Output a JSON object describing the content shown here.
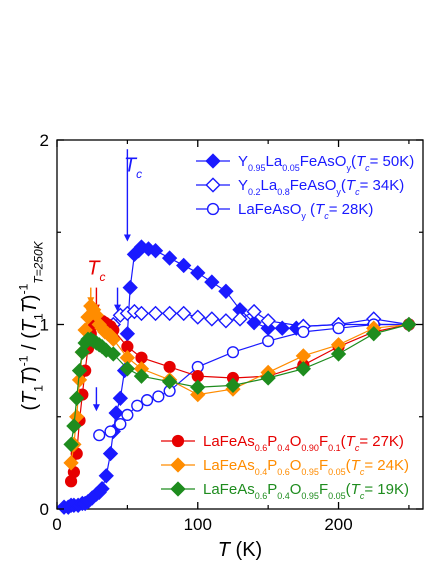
{
  "chart_data": {
    "type": "scatter",
    "title": "",
    "xlabel": "T (K)",
    "ylabel": "(T1T)^-1 / (T1T)^-1 T=250K",
    "xlim": [
      0,
      260
    ],
    "ylim": [
      0,
      2
    ],
    "xticks": [
      0,
      100,
      200
    ],
    "yticks": [
      0,
      1,
      2
    ],
    "grid": false,
    "legend_upper": "top-right",
    "legend_lower": "bottom-right",
    "annotations": [
      {
        "text": "Tc",
        "color": "#1a1aff",
        "x": 54,
        "y": 1.83
      },
      {
        "text": "Tc",
        "color": "#e60000",
        "x": 28,
        "y": 1.27
      }
    ],
    "arrows": [
      {
        "color": "#1a1aff",
        "x": 50,
        "y_from": 1.95,
        "y_to": 1.45
      },
      {
        "color": "#e60000",
        "x": 28,
        "y_from": 1.2,
        "y_to": 1.07
      },
      {
        "color": "#ff8c00",
        "x": 24,
        "y_from": 1.2,
        "y_to": 1.11
      },
      {
        "color": "#1a1aff",
        "x": 43,
        "y_from": 1.2,
        "y_to": 1.07
      },
      {
        "color": "#1a1aff",
        "x": 28,
        "y_from": 0.66,
        "y_to": 0.53
      }
    ],
    "series": [
      {
        "name": "Y0.95La0.05FeAsOy(Tc= 50K)",
        "legend_group": "upper",
        "color": "#1a1aff",
        "marker": "diamond",
        "filled": true,
        "legend_parts": [
          {
            "t": "Y"
          },
          {
            "t": "0.95",
            "sub": true
          },
          {
            "t": "La"
          },
          {
            "t": "0.05",
            "sub": true
          },
          {
            "t": "FeAsO"
          },
          {
            "t": "y",
            "sub": true
          },
          {
            "t": "("
          },
          {
            "t": "T",
            "it": true
          },
          {
            "t": "c",
            "sub": true,
            "it": true
          },
          {
            "t": "= 50K)"
          }
        ],
        "x": [
          5,
          8,
          10,
          12,
          15,
          18,
          20,
          22,
          25,
          28,
          30,
          32,
          35,
          38,
          40,
          42,
          45,
          48,
          50,
          52,
          55,
          58,
          60,
          65,
          70,
          80,
          90,
          100,
          110,
          120,
          130,
          140,
          150,
          160,
          170,
          175,
          200,
          225,
          250
        ],
        "y": [
          0.01,
          0.01,
          0.02,
          0.02,
          0.02,
          0.03,
          0.03,
          0.04,
          0.06,
          0.08,
          0.09,
          0.11,
          0.18,
          0.3,
          0.42,
          0.52,
          0.6,
          0.75,
          0.95,
          1.2,
          1.38,
          1.4,
          1.42,
          1.41,
          1.4,
          1.36,
          1.32,
          1.28,
          1.23,
          1.18,
          1.08,
          1.01,
          0.98,
          0.98,
          0.98,
          0.99,
          1.0,
          1.0,
          1.0
        ]
      },
      {
        "name": "Y0.2La0.8FeAsOy(Tc= 34K)",
        "legend_group": "upper",
        "color": "#1a1aff",
        "marker": "diamond",
        "filled": false,
        "legend_parts": [
          {
            "t": "Y"
          },
          {
            "t": "0.2",
            "sub": true
          },
          {
            "t": "La"
          },
          {
            "t": "0.8",
            "sub": true
          },
          {
            "t": "FeAsO"
          },
          {
            "t": "y",
            "sub": true
          },
          {
            "t": "("
          },
          {
            "t": "T",
            "it": true
          },
          {
            "t": "c",
            "sub": true,
            "it": true
          },
          {
            "t": "= 34K)"
          }
        ],
        "x": [
          40,
          45,
          50,
          55,
          60,
          70,
          80,
          90,
          100,
          110,
          120,
          130,
          140,
          150,
          175,
          200,
          225,
          250
        ],
        "y": [
          1.0,
          1.05,
          1.06,
          1.07,
          1.06,
          1.06,
          1.06,
          1.06,
          1.04,
          1.03,
          1.02,
          1.03,
          1.07,
          1.02,
          0.99,
          1.0,
          1.03,
          1.0
        ],
        "segments": [
          [
            0,
            1,
            2,
            3,
            4,
            5,
            6,
            7,
            8,
            9,
            10,
            11,
            12,
            13,
            14,
            15,
            16,
            17
          ]
        ]
      },
      {
        "name": "LaFeAsOy (Tc= 28K)",
        "legend_group": "upper",
        "color": "#1a1aff",
        "marker": "circle",
        "filled": false,
        "legend_parts": [
          {
            "t": "LaFeAsO"
          },
          {
            "t": "y",
            "sub": true
          },
          {
            "t": " ("
          },
          {
            "t": "T",
            "it": true
          },
          {
            "t": "c",
            "sub": true,
            "it": true
          },
          {
            "t": "= 28K)"
          }
        ],
        "x": [
          30,
          38,
          45,
          50,
          57,
          64,
          72,
          80,
          100,
          125,
          150,
          175,
          200,
          225,
          250
        ],
        "y": [
          0.4,
          0.42,
          0.46,
          0.51,
          0.56,
          0.59,
          0.61,
          0.64,
          0.77,
          0.85,
          0.91,
          0.96,
          0.98,
          1.0,
          1.0
        ]
      },
      {
        "name": "LaFeAs0.6P0.4O0.90F0.1(Tc= 27K)",
        "legend_group": "lower",
        "color": "#e60000",
        "marker": "circle",
        "filled": true,
        "legend_parts": [
          {
            "t": "LaFeAs"
          },
          {
            "t": "0.6",
            "sub": true
          },
          {
            "t": "P"
          },
          {
            "t": "0.4",
            "sub": true
          },
          {
            "t": "O"
          },
          {
            "t": "0.90",
            "sub": true
          },
          {
            "t": "F"
          },
          {
            "t": "0.1",
            "sub": true
          },
          {
            "t": "("
          },
          {
            "t": "T",
            "it": true
          },
          {
            "t": "c",
            "sub": true,
            "it": true
          },
          {
            "t": "= 27K)"
          }
        ],
        "x": [
          10,
          12,
          14,
          16,
          18,
          20,
          22,
          24,
          26,
          28,
          30,
          32,
          34,
          36,
          38,
          40,
          50,
          60,
          80,
          100,
          125,
          150,
          175,
          200,
          225,
          250
        ],
        "y": [
          0.15,
          0.2,
          0.3,
          0.48,
          0.62,
          0.75,
          0.87,
          0.95,
          1.0,
          1.02,
          1.02,
          1.02,
          1.01,
          1.0,
          0.99,
          0.97,
          0.88,
          0.82,
          0.77,
          0.72,
          0.71,
          0.72,
          0.78,
          0.88,
          0.96,
          1.0
        ]
      },
      {
        "name": "LaFeAs0.4P0.6O0.95F0.05(Tc= 24K)",
        "legend_group": "lower",
        "color": "#ff8c00",
        "marker": "diamond",
        "filled": true,
        "legend_parts": [
          {
            "t": "LaFeAs"
          },
          {
            "t": "0.4",
            "sub": true
          },
          {
            "t": "P"
          },
          {
            "t": "0.6",
            "sub": true
          },
          {
            "t": "O"
          },
          {
            "t": "0.95",
            "sub": true
          },
          {
            "t": "F"
          },
          {
            "t": "0.05",
            "sub": true
          },
          {
            "t": "("
          },
          {
            "t": "T",
            "it": true
          },
          {
            "t": "c",
            "sub": true,
            "it": true
          },
          {
            "t": "= 24K)"
          }
        ],
        "x": [
          10,
          12,
          14,
          16,
          18,
          20,
          22,
          24,
          26,
          28,
          30,
          32,
          34,
          36,
          38,
          40,
          50,
          60,
          80,
          100,
          125,
          150,
          175,
          200,
          225,
          250
        ],
        "y": [
          0.25,
          0.35,
          0.5,
          0.7,
          0.85,
          0.97,
          1.04,
          1.1,
          1.08,
          1.05,
          1.0,
          0.98,
          0.96,
          0.95,
          0.94,
          0.92,
          0.82,
          0.76,
          0.7,
          0.62,
          0.65,
          0.74,
          0.83,
          0.89,
          0.98,
          1.0
        ]
      },
      {
        "name": "LaFeAs0.6P0.4O0.95F0.05(Tc= 19K)",
        "legend_group": "lower",
        "color": "#1e8c1e",
        "marker": "diamond",
        "filled": true,
        "legend_parts": [
          {
            "t": "LaFeAs"
          },
          {
            "t": "0.6",
            "sub": true
          },
          {
            "t": "P"
          },
          {
            "t": "0.4",
            "sub": true
          },
          {
            "t": "O"
          },
          {
            "t": "0.95",
            "sub": true
          },
          {
            "t": "F"
          },
          {
            "t": "0.05",
            "sub": true
          },
          {
            "t": "("
          },
          {
            "t": "T",
            "it": true
          },
          {
            "t": "c",
            "sub": true,
            "it": true
          },
          {
            "t": "= 19K)"
          }
        ],
        "x": [
          10,
          12,
          14,
          16,
          18,
          20,
          22,
          24,
          26,
          28,
          30,
          32,
          35,
          40,
          50,
          60,
          80,
          100,
          125,
          150,
          175,
          200,
          225,
          250
        ],
        "y": [
          0.35,
          0.45,
          0.6,
          0.75,
          0.85,
          0.9,
          0.92,
          0.92,
          0.91,
          0.9,
          0.89,
          0.88,
          0.86,
          0.84,
          0.76,
          0.72,
          0.69,
          0.66,
          0.67,
          0.71,
          0.76,
          0.84,
          0.95,
          1.0
        ]
      }
    ]
  }
}
